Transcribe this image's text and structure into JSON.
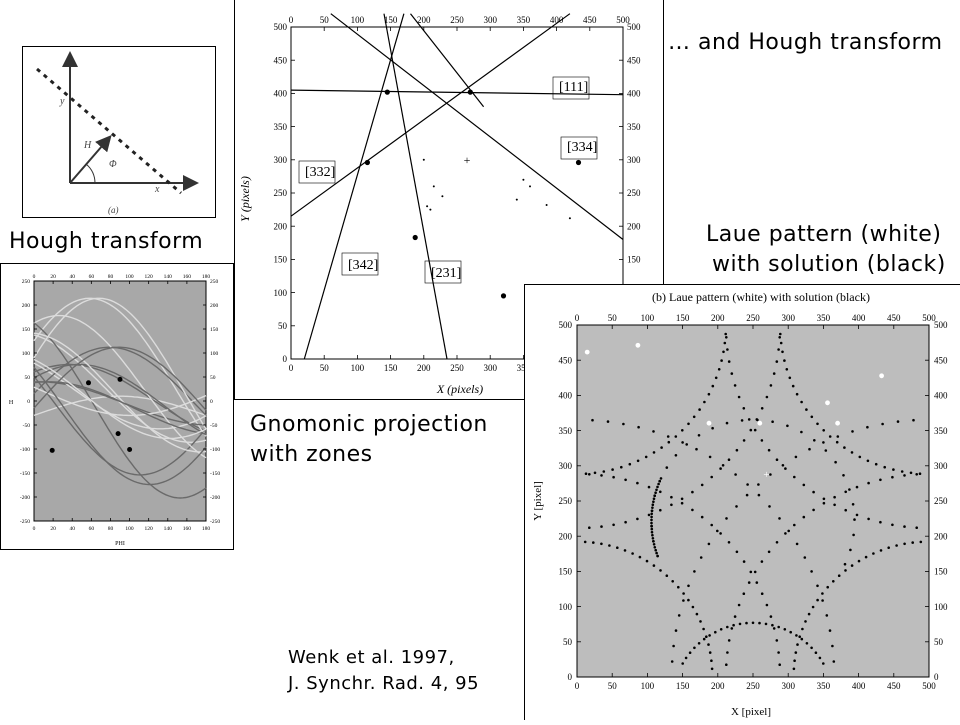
{
  "captions": {
    "hough_transform": "Hough transform",
    "and_hough": "… and Hough transform",
    "laue_line1": "Laue pattern (white)",
    "laue_line2": "with solution (black)",
    "gnomonic_line1": "Gnomonic projection",
    "gnomonic_line2": "with zones",
    "ref_line1": "Wenk et al. 1997,",
    "ref_line2": "J. Synchr. Rad. 4, 95"
  },
  "diagram": {
    "label_y": "y",
    "label_x": "x",
    "label_H": "H",
    "label_phi": "Φ",
    "label_a": "(a)"
  },
  "hough_plot": {
    "xlabel": "PHI",
    "ylabel": "H",
    "x_ticks": [
      "0",
      "20",
      "40",
      "60",
      "80",
      "100",
      "120",
      "140",
      "160",
      "180"
    ],
    "y_ticks": [
      "250",
      "200",
      "150",
      "100",
      "50",
      "0",
      "-50",
      "-100",
      "-150",
      "-200",
      "-250"
    ]
  },
  "gnomonic_plot": {
    "xlabel": "X (pixels)",
    "ylabel": "Y (pixels)",
    "x_ticks": [
      "0",
      "50",
      "100",
      "150",
      "200",
      "250",
      "300",
      "350",
      "400",
      "450",
      "500"
    ],
    "y_ticks": [
      "500",
      "450",
      "400",
      "350",
      "300",
      "250",
      "200",
      "150",
      "100",
      "50",
      "0"
    ],
    "zones": [
      "[111]",
      "[334]",
      "[332]",
      "[342]",
      "[231]"
    ]
  },
  "laue_plot": {
    "title": "(b) Laue pattern (white) with solution (black)",
    "xlabel": "X [pixel]",
    "ylabel": "Y [pixel]",
    "x_ticks": [
      "0",
      "50",
      "100",
      "150",
      "200",
      "250",
      "300",
      "350",
      "400",
      "450",
      "500"
    ],
    "y_ticks": [
      "500",
      "450",
      "400",
      "350",
      "300",
      "250",
      "200",
      "150",
      "100",
      "50",
      "0"
    ]
  }
}
